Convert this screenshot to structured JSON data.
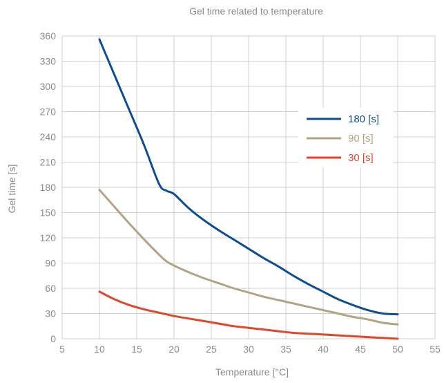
{
  "chart_data": {
    "type": "line",
    "title": "Gel time related to temperature",
    "xlabel": "Temperature [°C]",
    "ylabel": "Gel time [s]",
    "xlim": [
      5,
      55
    ],
    "ylim": [
      0,
      360
    ],
    "xticks": [
      5,
      10,
      15,
      20,
      25,
      30,
      35,
      40,
      45,
      50,
      55
    ],
    "yticks": [
      0,
      30,
      60,
      90,
      120,
      150,
      180,
      210,
      240,
      270,
      300,
      330,
      360
    ],
    "grid": true,
    "legend_position": "upper-right-inside",
    "series": [
      {
        "name": "180 [s]",
        "color": "#0e4d92",
        "x": [
          10,
          12,
          14,
          16,
          18,
          19,
          20,
          22,
          24,
          26,
          28,
          30,
          32,
          34,
          36,
          38,
          40,
          42,
          44,
          46,
          48,
          50
        ],
        "y": [
          356,
          314,
          272,
          230,
          184,
          176,
          172,
          155,
          141,
          129,
          118,
          107,
          96,
          86,
          75,
          65,
          56,
          47,
          40,
          34,
          30,
          29
        ]
      },
      {
        "name": "90 [s]",
        "color": "#b4a383",
        "x": [
          10,
          12,
          14,
          16,
          18,
          19,
          20,
          22,
          24,
          26,
          28,
          30,
          32,
          34,
          36,
          38,
          40,
          42,
          44,
          46,
          48,
          50
        ],
        "y": [
          177,
          157,
          137,
          118,
          100,
          92,
          87,
          79,
          72,
          66,
          60,
          55,
          50,
          46,
          42,
          38,
          34,
          30,
          26,
          23,
          19,
          17
        ]
      },
      {
        "name": "30 [s]",
        "color": "#e2462a",
        "x": [
          10,
          12,
          14,
          16,
          18,
          20,
          22,
          24,
          26,
          28,
          30,
          32,
          34,
          36,
          38,
          40,
          42,
          44,
          46,
          48,
          50
        ],
        "y": [
          56,
          47,
          40,
          35,
          31,
          27,
          24,
          21,
          18,
          15,
          13,
          11,
          9,
          7,
          6,
          5,
          4,
          3,
          2,
          1,
          0
        ]
      }
    ]
  }
}
